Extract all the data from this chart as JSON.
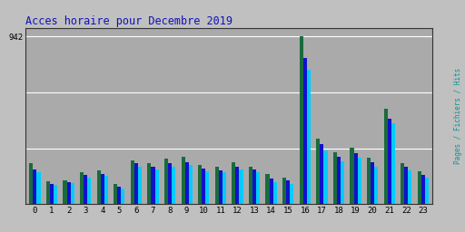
{
  "title": "Acces horaire pour Decembre 2019",
  "xlabels": [
    "0",
    "1",
    "2",
    "3",
    "4",
    "5",
    "6",
    "7",
    "8",
    "9",
    "10",
    "11",
    "12",
    "13",
    "14",
    "15",
    "16",
    "17",
    "18",
    "19",
    "20",
    "21",
    "22",
    "23"
  ],
  "ytick_val": 942,
  "ymax": 990,
  "grid_lines": [
    314,
    628,
    942
  ],
  "colors": {
    "pages": "#1A6B3C",
    "fichiers": "#1111CC",
    "hits": "#00CCFF"
  },
  "bg_color": "#AAAAAA",
  "fig_color": "#C0C0C0",
  "title_color": "#1111BB",
  "right_label": "Pages / Fichiers / Hits",
  "right_label_color": "#009999",
  "pages": [
    230,
    128,
    132,
    182,
    192,
    112,
    248,
    228,
    256,
    264,
    222,
    212,
    234,
    212,
    168,
    150,
    942,
    366,
    290,
    316,
    260,
    535,
    230,
    186
  ],
  "fichiers": [
    195,
    115,
    126,
    162,
    170,
    96,
    228,
    210,
    232,
    236,
    200,
    190,
    210,
    196,
    145,
    132,
    820,
    336,
    264,
    288,
    235,
    480,
    210,
    165
  ],
  "hits": [
    178,
    110,
    120,
    148,
    158,
    88,
    212,
    194,
    212,
    218,
    184,
    178,
    194,
    178,
    122,
    112,
    756,
    304,
    242,
    262,
    208,
    452,
    188,
    148
  ]
}
